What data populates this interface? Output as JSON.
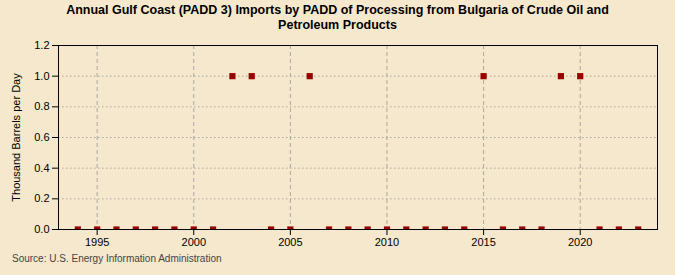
{
  "chart_data": {
    "type": "scatter",
    "title": "Annual Gulf Coast (PADD 3) Imports by PADD of Processing from Bulgaria of Crude Oil and\nPetroleum Products",
    "ylabel": "Thousand Barrels per Day",
    "source": "Source: U.S. Energy Information Administration",
    "x": [
      1994,
      1995,
      1996,
      1997,
      1998,
      1999,
      2000,
      2001,
      2002,
      2003,
      2004,
      2005,
      2006,
      2007,
      2008,
      2009,
      2010,
      2011,
      2012,
      2013,
      2014,
      2015,
      2016,
      2017,
      2018,
      2019,
      2020,
      2021,
      2022,
      2023
    ],
    "values": [
      0.0,
      0.0,
      0.0,
      0.0,
      0.0,
      0.0,
      0.0,
      0.0,
      1.0,
      1.0,
      0.0,
      0.0,
      1.0,
      0.0,
      0.0,
      0.0,
      0.0,
      0.0,
      0.0,
      0.0,
      0.0,
      1.0,
      0.0,
      0.0,
      0.0,
      1.0,
      1.0,
      0.0,
      0.0,
      0.0
    ],
    "color": "#990000",
    "marker": "square",
    "xlim": [
      1993,
      2024
    ],
    "xticks": [
      1995,
      2000,
      2005,
      2010,
      2015,
      2020
    ],
    "ylim": [
      0.0,
      1.2
    ],
    "yticks": [
      {
        "value": 0.0,
        "label": "0.0"
      },
      0.2,
      0.4,
      0.6,
      0.8,
      {
        "value": 1.0,
        "label": "1.0"
      },
      1.2
    ],
    "grid": true
  }
}
